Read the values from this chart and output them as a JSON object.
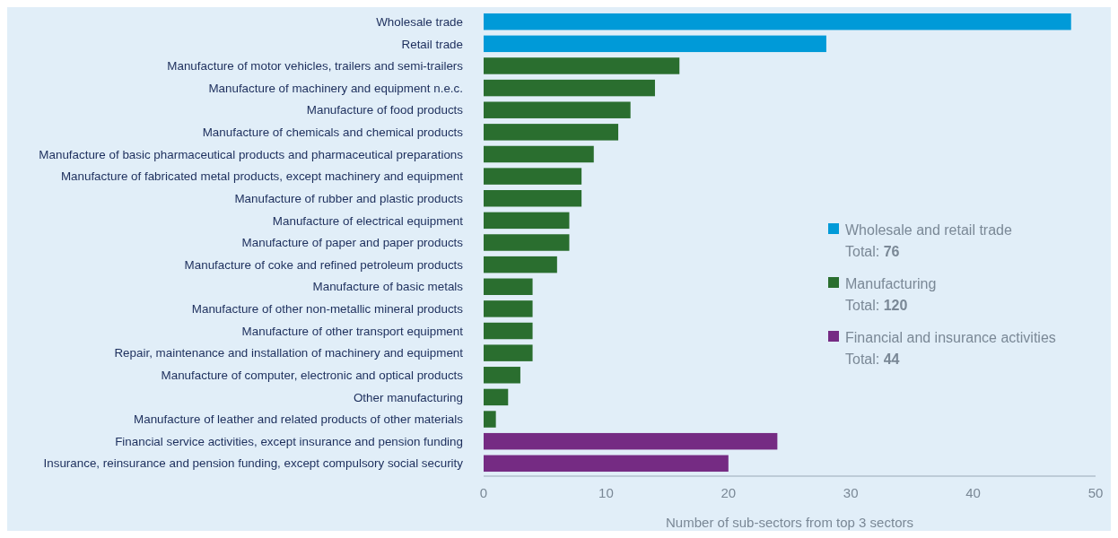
{
  "chart_data": {
    "type": "bar",
    "orientation": "horizontal",
    "xlabel": "Number of sub-sectors from top 3 sectors",
    "categories": [
      "Wholesale trade",
      "Retail trade",
      "Manufacture of motor vehicles, trailers and semi-trailers",
      "Manufacture of machinery and equipment n.e.c.",
      "Manufacture of food products",
      "Manufacture of chemicals and chemical products",
      "Manufacture of basic pharmaceutical products and pharmaceutical preparations",
      "Manufacture of fabricated metal products, except machinery and equipment",
      "Manufacture of rubber and plastic products",
      "Manufacture of electrical equipment",
      "Manufacture of paper and paper products",
      "Manufacture of coke and refined petroleum products",
      "Manufacture of basic metals",
      "Manufacture of other non-metallic mineral products",
      "Manufacture of other transport equipment",
      "Repair, maintenance and installation of machinery and equipment",
      "Manufacture of computer, electronic and optical products",
      "Other manufacturing",
      "Manufacture of leather and related products of other materials",
      "Financial service activities, except insurance and pension funding",
      "Insurance, reinsurance and pension funding, except compulsory social security"
    ],
    "series": [
      {
        "name": "Wholesale and retail trade",
        "color": "#009ad8",
        "values": [
          48,
          28,
          null,
          null,
          null,
          null,
          null,
          null,
          null,
          null,
          null,
          null,
          null,
          null,
          null,
          null,
          null,
          null,
          null,
          null,
          null
        ]
      },
      {
        "name": "Manufacturing",
        "color": "#2a6e2f",
        "values": [
          null,
          null,
          16,
          14,
          12,
          11,
          9,
          8,
          8,
          7,
          7,
          6,
          4,
          4,
          4,
          4,
          3,
          2,
          1,
          null,
          null
        ]
      },
      {
        "name": "Financial and insurance activities",
        "color": "#752b83",
        "values": [
          null,
          null,
          null,
          null,
          null,
          null,
          null,
          null,
          null,
          null,
          null,
          null,
          null,
          null,
          null,
          null,
          null,
          null,
          null,
          24,
          20
        ]
      }
    ],
    "annotations": [
      "Total: 76",
      "Total: 120",
      "Total: 44"
    ],
    "xlim": [
      0,
      50
    ],
    "xticks": [
      0,
      10,
      20,
      30,
      40,
      50
    ],
    "grid": false,
    "legend": "right"
  }
}
